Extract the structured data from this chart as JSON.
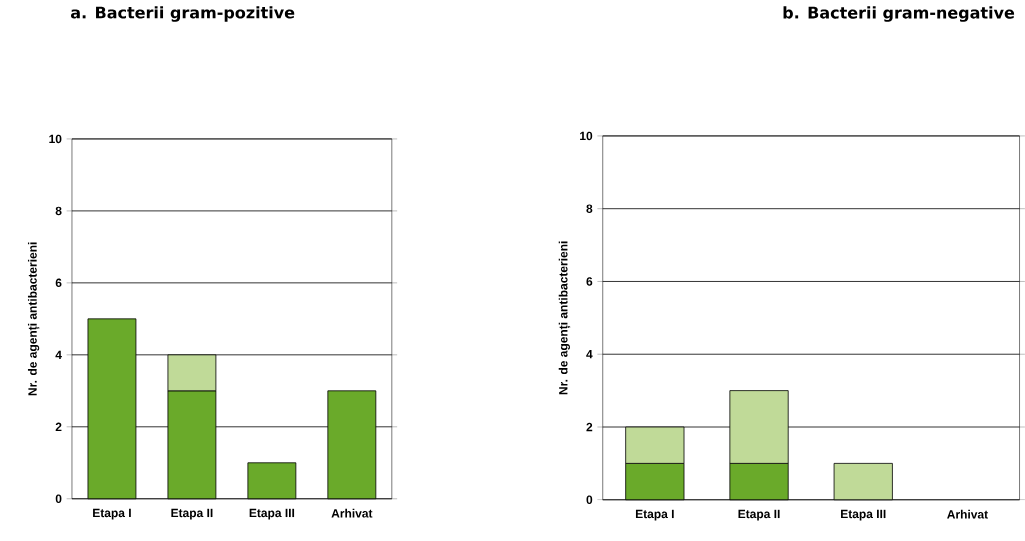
{
  "chart_data": [
    {
      "type": "bar",
      "title": "a. Bacterii gram-pozitive",
      "ylabel": "Nr. de agenți antibacterieni",
      "categories": [
        "Etapa I",
        "Etapa II",
        "Etapa III",
        "Arhivat"
      ],
      "stacked": true,
      "series": [
        {
          "color": "#6aaa2a",
          "values": [
            5,
            3,
            1,
            3
          ]
        },
        {
          "color": "#c0da98",
          "values": [
            null,
            1,
            null,
            null
          ]
        }
      ],
      "ylim": [
        0,
        10
      ],
      "yticks": [
        0,
        2,
        4,
        6,
        8,
        10
      ],
      "grid": "y"
    },
    {
      "type": "bar",
      "title": "b. Bacterii gram-negative",
      "ylabel": "Nr. de agenți antibacterieni",
      "categories": [
        "Etapa I",
        "Etapa II",
        "Etapa III",
        "Arhivat"
      ],
      "stacked": true,
      "series": [
        {
          "color": "#6aaa2a",
          "values": [
            1,
            1,
            null,
            null
          ]
        },
        {
          "color": "#c0da98",
          "values": [
            1,
            2,
            1,
            null
          ]
        }
      ],
      "ylim": [
        0,
        10
      ],
      "yticks": [
        0,
        2,
        4,
        6,
        8,
        10
      ],
      "grid": "y"
    }
  ]
}
